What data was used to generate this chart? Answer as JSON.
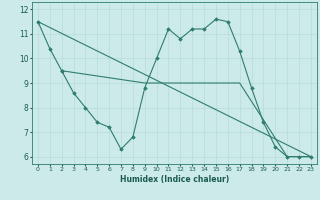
{
  "xlabel": "Humidex (Indice chaleur)",
  "bg_color": "#cceae7",
  "grid_color": "#b8ddd9",
  "line_color": "#2e7d6e",
  "xlim": [
    -0.5,
    23.5
  ],
  "ylim": [
    5.7,
    12.3
  ],
  "xticks": [
    0,
    1,
    2,
    3,
    4,
    5,
    6,
    7,
    8,
    9,
    10,
    11,
    12,
    13,
    14,
    15,
    16,
    17,
    18,
    19,
    20,
    21,
    22,
    23
  ],
  "yticks": [
    6,
    7,
    8,
    9,
    10,
    11,
    12
  ],
  "lines": [
    {
      "x": [
        0,
        1,
        2
      ],
      "y": [
        11.5,
        10.4,
        9.5
      ],
      "marker": true
    },
    {
      "x": [
        2,
        3,
        4,
        5,
        6,
        7,
        8,
        9,
        10,
        11,
        12,
        13,
        14,
        15,
        16,
        17,
        18,
        19,
        20,
        21,
        22,
        23
      ],
      "y": [
        9.5,
        8.6,
        8.0,
        7.4,
        7.2,
        6.3,
        6.8,
        8.8,
        10.0,
        11.2,
        10.8,
        11.2,
        11.2,
        11.6,
        11.5,
        10.3,
        8.8,
        7.4,
        6.4,
        6.0,
        6.0,
        6.0
      ],
      "marker": true
    },
    {
      "x": [
        2,
        9,
        14,
        17,
        21,
        23
      ],
      "y": [
        9.5,
        9.0,
        9.0,
        9.0,
        6.0,
        6.0
      ],
      "marker": false
    },
    {
      "x": [
        0,
        23
      ],
      "y": [
        11.5,
        6.0
      ],
      "marker": false
    }
  ]
}
